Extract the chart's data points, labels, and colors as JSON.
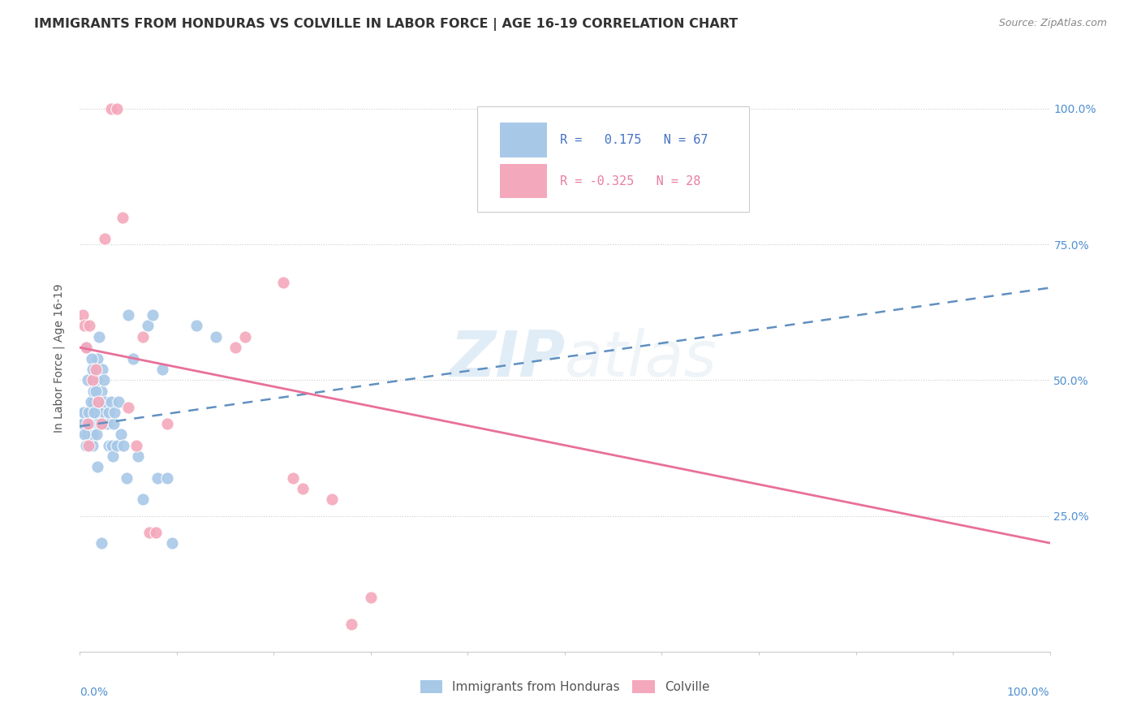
{
  "title": "IMMIGRANTS FROM HONDURAS VS COLVILLE IN LABOR FORCE | AGE 16-19 CORRELATION CHART",
  "source": "Source: ZipAtlas.com",
  "ylabel": "In Labor Force | Age 16-19",
  "ytick_labels": [
    "25.0%",
    "50.0%",
    "75.0%",
    "100.0%"
  ],
  "ytick_values": [
    0.25,
    0.5,
    0.75,
    1.0
  ],
  "xlim": [
    0.0,
    1.0
  ],
  "ylim": [
    0.0,
    1.08
  ],
  "r_blue": 0.175,
  "n_blue": 67,
  "r_pink": -0.325,
  "n_pink": 28,
  "blue_color": "#A8C8E8",
  "pink_color": "#F4A8BC",
  "blue_line_color": "#6090C0",
  "pink_line_color": "#E8709A",
  "right_tick_color": "#5090D0",
  "watermark": "ZIPatlas",
  "blue_scatter_x": [
    0.005,
    0.005,
    0.008,
    0.01,
    0.01,
    0.01,
    0.012,
    0.012,
    0.013,
    0.013,
    0.014,
    0.015,
    0.015,
    0.016,
    0.017,
    0.018,
    0.018,
    0.019,
    0.02,
    0.02,
    0.022,
    0.023,
    0.025,
    0.025,
    0.026,
    0.028,
    0.03,
    0.03,
    0.032,
    0.033,
    0.034,
    0.035,
    0.036,
    0.038,
    0.04,
    0.042,
    0.045,
    0.048,
    0.05,
    0.055,
    0.06,
    0.065,
    0.07,
    0.075,
    0.08,
    0.085,
    0.09,
    0.095,
    0.12,
    0.14,
    0.003,
    0.004,
    0.005,
    0.006,
    0.007,
    0.008,
    0.009,
    0.01,
    0.011,
    0.012,
    0.013,
    0.014,
    0.015,
    0.016,
    0.017,
    0.018,
    0.022
  ],
  "blue_scatter_y": [
    0.42,
    0.44,
    0.4,
    0.38,
    0.41,
    0.43,
    0.39,
    0.42,
    0.38,
    0.4,
    0.46,
    0.44,
    0.48,
    0.43,
    0.5,
    0.46,
    0.54,
    0.42,
    0.58,
    0.45,
    0.48,
    0.52,
    0.44,
    0.5,
    0.46,
    0.42,
    0.44,
    0.38,
    0.46,
    0.38,
    0.36,
    0.42,
    0.44,
    0.38,
    0.46,
    0.4,
    0.38,
    0.32,
    0.62,
    0.54,
    0.36,
    0.28,
    0.6,
    0.62,
    0.32,
    0.52,
    0.32,
    0.2,
    0.6,
    0.58,
    0.42,
    0.44,
    0.4,
    0.38,
    0.56,
    0.5,
    0.44,
    0.42,
    0.46,
    0.54,
    0.52,
    0.48,
    0.44,
    0.48,
    0.4,
    0.34,
    0.2
  ],
  "pink_scatter_x": [
    0.003,
    0.005,
    0.006,
    0.008,
    0.009,
    0.01,
    0.013,
    0.016,
    0.019,
    0.022,
    0.026,
    0.032,
    0.038,
    0.044,
    0.05,
    0.058,
    0.065,
    0.072,
    0.078,
    0.09,
    0.16,
    0.17,
    0.21,
    0.22,
    0.23,
    0.26,
    0.28,
    0.3
  ],
  "pink_scatter_y": [
    0.62,
    0.6,
    0.56,
    0.42,
    0.38,
    0.6,
    0.5,
    0.52,
    0.46,
    0.42,
    0.76,
    1.0,
    1.0,
    0.8,
    0.45,
    0.38,
    0.58,
    0.22,
    0.22,
    0.42,
    0.56,
    0.58,
    0.68,
    0.32,
    0.3,
    0.28,
    0.05,
    0.1
  ],
  "blue_trend_x": [
    0.0,
    1.0
  ],
  "blue_trend_y_start": 0.415,
  "blue_trend_y_end": 0.67,
  "pink_trend_x": [
    0.0,
    1.0
  ],
  "pink_trend_y_start": 0.56,
  "pink_trend_y_end": 0.2
}
